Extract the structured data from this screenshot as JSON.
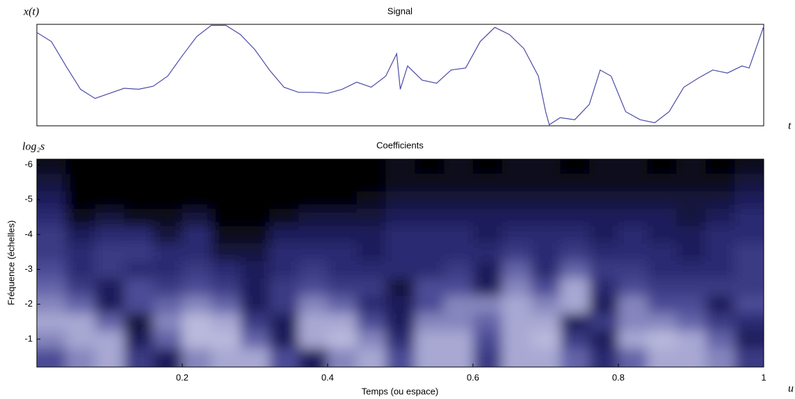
{
  "chart_data": [
    {
      "type": "line",
      "title": "Signal",
      "ylabel": "x(t)",
      "xlabel": "t",
      "color": "#4a4aa8",
      "xlim": [
        0,
        1
      ],
      "ylim": [
        0,
        1
      ],
      "x": [
        0,
        0.02,
        0.04,
        0.06,
        0.08,
        0.1,
        0.12,
        0.14,
        0.16,
        0.18,
        0.2,
        0.22,
        0.24,
        0.26,
        0.28,
        0.3,
        0.32,
        0.34,
        0.36,
        0.38,
        0.4,
        0.42,
        0.44,
        0.46,
        0.48,
        0.495,
        0.5,
        0.51,
        0.53,
        0.55,
        0.57,
        0.59,
        0.61,
        0.63,
        0.65,
        0.67,
        0.69,
        0.7,
        0.705,
        0.72,
        0.74,
        0.76,
        0.775,
        0.79,
        0.81,
        0.83,
        0.85,
        0.87,
        0.89,
        0.91,
        0.93,
        0.95,
        0.97,
        0.98,
        1
      ],
      "values": [
        0.92,
        0.83,
        0.59,
        0.36,
        0.27,
        0.32,
        0.37,
        0.36,
        0.39,
        0.49,
        0.69,
        0.88,
        0.99,
        0.99,
        0.9,
        0.75,
        0.55,
        0.38,
        0.33,
        0.33,
        0.32,
        0.36,
        0.43,
        0.38,
        0.49,
        0.71,
        0.36,
        0.59,
        0.45,
        0.42,
        0.55,
        0.57,
        0.83,
        0.97,
        0.9,
        0.76,
        0.49,
        0.14,
        0.01,
        0.08,
        0.06,
        0.21,
        0.55,
        0.49,
        0.14,
        0.06,
        0.03,
        0.14,
        0.38,
        0.47,
        0.55,
        0.52,
        0.59,
        0.57,
        0.98
      ]
    },
    {
      "type": "heatmap",
      "title": "Coefficients",
      "ylabel": "Fréquence (échelles)",
      "xlabel": "Temps (ou espace)",
      "corner_label": "log₂s",
      "axis_end_label": "u",
      "colorscale": [
        "#000000",
        "#1e1e66",
        "#5858a2",
        "#cacae8"
      ],
      "xlim": [
        0,
        1
      ],
      "ylim": [
        -0.2,
        -6.16
      ],
      "xticks": [
        0.2,
        0.4,
        0.6,
        0.8,
        1
      ],
      "yticks": [
        -1,
        -2,
        -3,
        -4,
        -5,
        -6
      ],
      "x": [
        0.02,
        0.06,
        0.1,
        0.14,
        0.18,
        0.22,
        0.26,
        0.3,
        0.34,
        0.38,
        0.42,
        0.46,
        0.5,
        0.54,
        0.58,
        0.62,
        0.66,
        0.7,
        0.74,
        0.78,
        0.82,
        0.86,
        0.9,
        0.94,
        0.98
      ],
      "y": [
        -0.5,
        -1,
        -1.5,
        -2,
        -2.5,
        -3,
        -3.5,
        -4,
        -4.5,
        -5,
        -5.5,
        -6
      ],
      "z": [
        [
          0.6,
          0.8,
          0.9,
          0.5,
          0.3,
          0.8,
          0.9,
          0.9,
          0.6,
          0.3,
          0.8,
          0.9,
          0.6,
          0.9,
          0.9,
          0.5,
          0.9,
          0.9,
          0.7,
          0.4,
          0.7,
          0.9,
          0.9,
          0.8,
          0.5
        ],
        [
          0.8,
          0.9,
          0.9,
          0.3,
          0.7,
          0.95,
          0.95,
          0.7,
          0.3,
          0.9,
          0.95,
          0.8,
          0.4,
          0.9,
          0.9,
          0.6,
          0.9,
          0.95,
          0.5,
          0.3,
          0.9,
          0.95,
          0.9,
          0.7,
          0.3
        ],
        [
          0.9,
          0.9,
          0.7,
          0.2,
          0.8,
          0.95,
          0.9,
          0.5,
          0.3,
          0.9,
          0.9,
          0.6,
          0.3,
          0.8,
          0.8,
          0.7,
          0.9,
          0.9,
          0.3,
          0.5,
          0.8,
          0.8,
          0.7,
          0.5,
          0.4
        ],
        [
          0.8,
          0.7,
          0.3,
          0.6,
          0.7,
          0.8,
          0.7,
          0.3,
          0.5,
          0.8,
          0.7,
          0.4,
          0.3,
          0.6,
          0.8,
          0.8,
          0.9,
          0.8,
          0.9,
          0.3,
          0.8,
          0.6,
          0.6,
          0.3,
          0.6
        ],
        [
          0.7,
          0.5,
          0.3,
          0.6,
          0.5,
          0.6,
          0.5,
          0.3,
          0.5,
          0.6,
          0.5,
          0.5,
          0.2,
          0.6,
          0.6,
          0.3,
          0.8,
          0.6,
          0.9,
          0.4,
          0.6,
          0.5,
          0.5,
          0.5,
          0.5
        ],
        [
          0.6,
          0.4,
          0.5,
          0.4,
          0.4,
          0.5,
          0.4,
          0.3,
          0.4,
          0.5,
          0.4,
          0.4,
          0.4,
          0.4,
          0.5,
          0.3,
          0.7,
          0.4,
          0.7,
          0.5,
          0.5,
          0.4,
          0.4,
          0.4,
          0.5
        ],
        [
          0.5,
          0.4,
          0.5,
          0.5,
          0.4,
          0.4,
          0.2,
          0.2,
          0.4,
          0.4,
          0.4,
          0.3,
          0.4,
          0.4,
          0.4,
          0.4,
          0.5,
          0.4,
          0.5,
          0.4,
          0.4,
          0.4,
          0.3,
          0.4,
          0.5
        ],
        [
          0.5,
          0.3,
          0.4,
          0.4,
          0.2,
          0.4,
          0.1,
          0.1,
          0.3,
          0.3,
          0.3,
          0.3,
          0.4,
          0.4,
          0.4,
          0.3,
          0.4,
          0.4,
          0.4,
          0.3,
          0.4,
          0.3,
          0.3,
          0.4,
          0.4
        ],
        [
          0.4,
          0.1,
          0.2,
          0.1,
          0.1,
          0.2,
          0,
          0,
          0.1,
          0.2,
          0.2,
          0.2,
          0.3,
          0.3,
          0.3,
          0.3,
          0.3,
          0.3,
          0.3,
          0.3,
          0.3,
          0.3,
          0.2,
          0.3,
          0.4
        ],
        [
          0.3,
          0,
          0,
          0,
          0,
          0,
          0,
          0,
          0,
          0,
          0,
          0.1,
          0.2,
          0.2,
          0.2,
          0.2,
          0.2,
          0.2,
          0.2,
          0.2,
          0.2,
          0.2,
          0.2,
          0.2,
          0.3
        ],
        [
          0.2,
          0,
          0,
          0,
          0,
          0,
          0,
          0,
          0,
          0,
          0,
          0,
          0.1,
          0.1,
          0.1,
          0.1,
          0.1,
          0.1,
          0.1,
          0.1,
          0.1,
          0.1,
          0.1,
          0.1,
          0.2
        ],
        [
          0.1,
          0,
          0,
          0,
          0,
          0,
          0,
          0,
          0,
          0,
          0,
          0,
          0.1,
          0,
          0.1,
          0,
          0.1,
          0.1,
          0,
          0.1,
          0.1,
          0,
          0.1,
          0,
          0.1
        ]
      ]
    }
  ]
}
